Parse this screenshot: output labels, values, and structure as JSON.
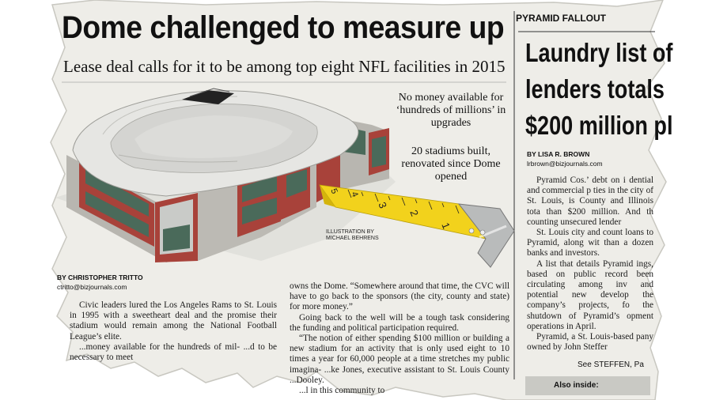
{
  "main_story": {
    "headline": "Dome challenged to measure up",
    "deck": "Lease deal calls for it to be among top eight NFL facilities in 2015",
    "callouts": [
      "No money available for ‘hundreds of millions’ in upgrades",
      "20 stadiums built, renovated since Dome opened"
    ],
    "illustration_credit": [
      "ILLUSTRATION BY",
      "MICHAEL BEHRENS"
    ],
    "byline": "BY CHRISTOPHER TRITTO",
    "email": "ctritto@bizjournals.com",
    "col1_paragraphs": [
      "Civic leaders lured the Los Angeles Rams to St. Louis in 1995 with a sweetheart deal and the promise their stadium would remain among the National Football League’s elite.",
      "...money available for the hundreds of mil- ...d to be necessary to meet"
    ],
    "col2_paragraphs": [
      "owns the Dome. “Somewhere around that time, the CVC will have to go back to the sponsors (the city, county and state) for more money.”",
      "Going back to the well will be a tough task considering the funding and political participation required.",
      "“The notion of either spending $100 million or building a new stadium for an activity that is only used eight to 10 times a year for 60,000 people at a time stretches my public imagina- ...ke Jones, executive assistant to St. Louis County ...Dooley.",
      "...l in this community to"
    ],
    "tape_numbers": [
      "5",
      "4",
      "3",
      "2",
      "1"
    ]
  },
  "side_story": {
    "kicker": "PYRAMID FALLOUT",
    "headline_lines": [
      "Laundry list of",
      "lenders totals",
      "$200 million pl"
    ],
    "byline": "BY LISA R. BROWN",
    "email": "lrbrown@bizjournals.com",
    "paragraphs": [
      "Pyramid Cos.’ debt on i dential and commercial p ties in the city of St. Louis, is County and Illinois tota than $200 million. And th counting unsecured lender",
      "St. Louis city and count loans to Pyramid, along wit than a dozen banks and investors.",
      "A list that details Pyramid ings, based on public record been circulating among inv and potential new develop the company’s projects, fo the shutdown of Pyramid’s opment operations in April.",
      "Pyramid, a St. Louis-based pany owned by John Steffer"
    ],
    "see_line": "See STEFFEN, Pa",
    "also_inside": "Also inside:"
  },
  "colors": {
    "newsprint": "#eeede8",
    "tape_yellow": "#f2d21c",
    "brick": "#a8423a",
    "roof": "#d9d9d6"
  }
}
